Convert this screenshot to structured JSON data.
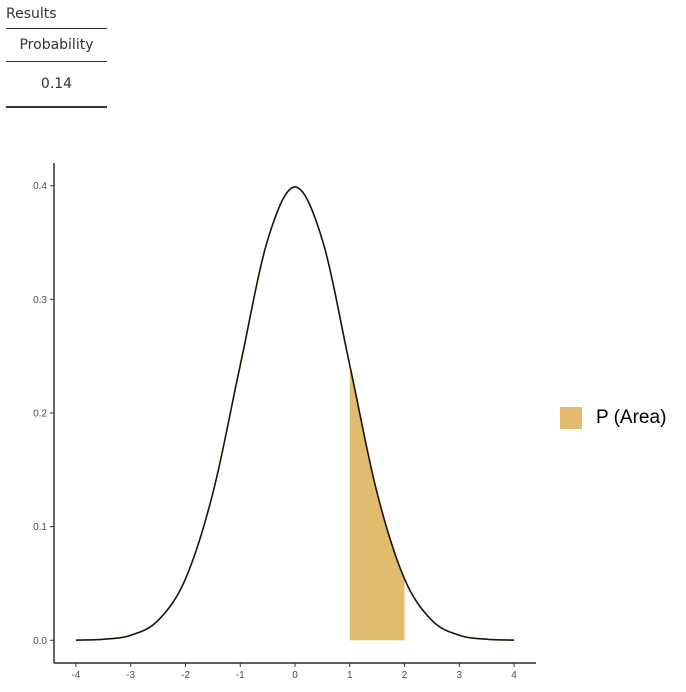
{
  "results": {
    "title": "Results",
    "column_header": "Probability",
    "value": "0.14"
  },
  "chart_data": {
    "type": "area",
    "curve": "standard normal density",
    "x": [
      -4,
      -3.5,
      -3,
      -2.5,
      -2,
      -1.5,
      -1,
      -0.5,
      0,
      0.5,
      1,
      1.5,
      2,
      2.5,
      3,
      3.5,
      4
    ],
    "y": [
      0.0001,
      0.0009,
      0.0044,
      0.0175,
      0.054,
      0.1295,
      0.242,
      0.3521,
      0.3989,
      0.3521,
      0.242,
      0.1295,
      0.054,
      0.0175,
      0.0044,
      0.0009,
      0.0001
    ],
    "shaded_region": {
      "from": 1,
      "to": 2
    },
    "xlim": [
      -4.4,
      4.4
    ],
    "ylim": [
      -0.02,
      0.42
    ],
    "x_ticks": [
      -4,
      -3,
      -2,
      -1,
      0,
      1,
      2,
      3,
      4
    ],
    "y_ticks": [
      0.0,
      0.1,
      0.2,
      0.3,
      0.4
    ],
    "y_tick_labels": [
      "0.0",
      "0.1",
      "0.2",
      "0.3",
      "0.4"
    ],
    "x_tick_labels": [
      "-4",
      "-3",
      "-2",
      "-1",
      "0",
      "1",
      "2",
      "3",
      "4"
    ],
    "title": "",
    "xlabel": "",
    "ylabel": "",
    "grid": false,
    "legend_position": "right",
    "legend": [
      {
        "label": "P (Area)",
        "color": "#e0bc6c"
      }
    ],
    "curve_color": "#1a1505",
    "fill_color": "#e0bc6c"
  }
}
